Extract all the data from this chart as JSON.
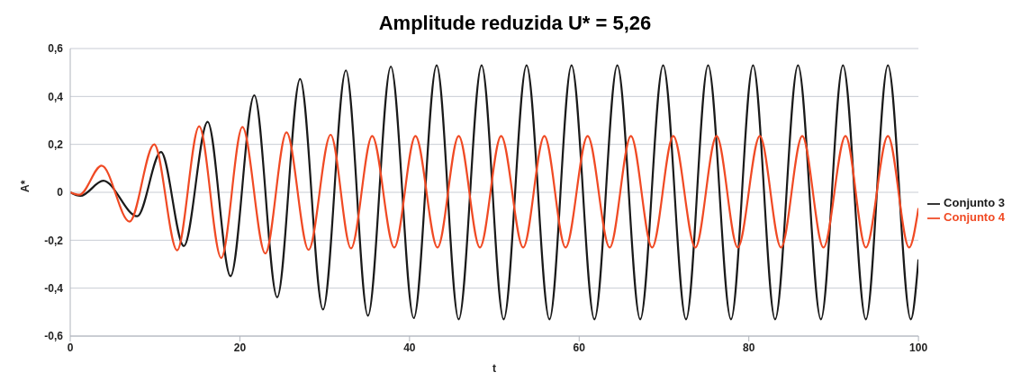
{
  "chart_data": {
    "type": "line",
    "title": "Amplitude reduzida U* = 5,26",
    "xlabel": "t",
    "ylabel": "A*",
    "xlim": [
      0,
      100
    ],
    "xticks": [
      0,
      20,
      40,
      60,
      80,
      100
    ],
    "ylim": [
      -0.6,
      0.6
    ],
    "yticks": [
      {
        "value": -0.6,
        "label": "-0,6"
      },
      {
        "value": -0.4,
        "label": "-0,4"
      },
      {
        "value": -0.2,
        "label": "-0,2"
      },
      {
        "value": 0,
        "label": "0"
      },
      {
        "value": 0.2,
        "label": "0,2"
      },
      {
        "value": 0.4,
        "label": "0,4"
      },
      {
        "value": 0.6,
        "label": "0,6"
      }
    ],
    "grid": "y",
    "legend": "right",
    "marker": "none",
    "line_style": "solid",
    "series": [
      {
        "name": "Conjunto 3",
        "color": "#1a1a1a",
        "x": [
          0,
          1.2,
          3.9,
          7.9,
          10.7,
          13.4,
          16.2,
          18.9,
          21.7,
          24.4,
          27.1,
          29.8,
          32.5,
          35.1,
          37.8,
          40.5,
          43.2,
          45.8,
          48.5,
          51.1,
          53.8,
          56.5,
          59.1,
          61.8,
          64.5,
          67.2,
          69.9,
          72.6,
          75.2,
          77.9,
          80.5,
          83.1,
          85.8,
          88.5,
          91.1,
          93.8,
          96.4,
          99.1,
          100
        ],
        "values": [
          0,
          -0.015,
          0.048,
          -0.1,
          0.168,
          -0.224,
          0.294,
          -0.35,
          0.405,
          -0.438,
          0.473,
          -0.489,
          0.509,
          -0.515,
          0.525,
          -0.525,
          0.53,
          -0.53,
          0.53,
          -0.53,
          0.53,
          -0.53,
          0.53,
          -0.53,
          0.53,
          -0.53,
          0.53,
          -0.53,
          0.53,
          -0.53,
          0.53,
          -0.53,
          0.53,
          -0.53,
          0.53,
          -0.53,
          0.53,
          -0.53,
          -0.28
        ]
      },
      {
        "name": "Conjunto 4",
        "color": "#f04a24",
        "x": [
          0,
          1.1,
          3.7,
          7.0,
          9.9,
          12.6,
          15.2,
          17.8,
          20.3,
          23.0,
          25.5,
          28.1,
          30.7,
          33.1,
          35.6,
          38.2,
          40.7,
          43.3,
          45.8,
          48.3,
          50.8,
          53.4,
          55.9,
          58.4,
          61.0,
          63.6,
          66.1,
          68.6,
          71.1,
          73.7,
          76.2,
          78.7,
          81.3,
          83.8,
          86.3,
          88.8,
          91.4,
          93.8,
          96.4,
          98.9,
          100
        ],
        "values": [
          0,
          -0.01,
          0.111,
          -0.122,
          0.2,
          -0.242,
          0.275,
          -0.274,
          0.272,
          -0.255,
          0.25,
          -0.24,
          0.24,
          -0.234,
          0.235,
          -0.23,
          0.235,
          -0.23,
          0.235,
          -0.23,
          0.235,
          -0.23,
          0.235,
          -0.23,
          0.235,
          -0.23,
          0.235,
          -0.23,
          0.235,
          -0.23,
          0.235,
          -0.23,
          0.235,
          -0.23,
          0.235,
          -0.23,
          0.235,
          -0.23,
          0.235,
          -0.23,
          -0.066
        ]
      }
    ]
  }
}
